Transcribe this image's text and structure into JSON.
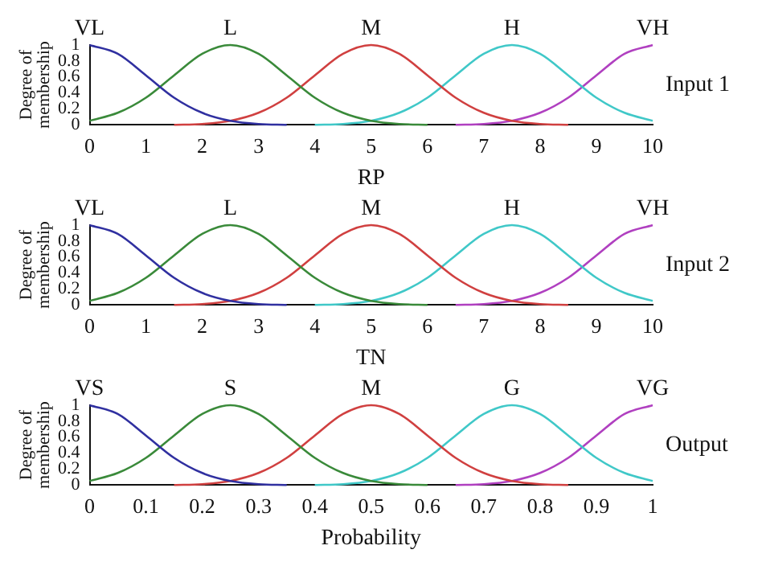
{
  "chart_data": [
    {
      "type": "line",
      "xlabel": "RP",
      "ylabel": "Degree of membership",
      "annotations": [
        "Input 1"
      ],
      "x": [
        0,
        0.5,
        1,
        1.5,
        2,
        2.5,
        3,
        3.5,
        4,
        4.5,
        5,
        5.5,
        6,
        6.5,
        7,
        7.5,
        8,
        8.5,
        9,
        9.5,
        10
      ],
      "xlim": [
        0,
        10
      ],
      "xticks": [
        0,
        1,
        2,
        3,
        4,
        5,
        6,
        7,
        8,
        9,
        10
      ],
      "ylim": [
        0,
        1
      ],
      "yticks": [
        0,
        0.2,
        0.4,
        0.6,
        0.8,
        1
      ],
      "grid": false,
      "legend": false,
      "marker": "none",
      "line_style": "solid",
      "series": [
        {
          "name": "VL",
          "color": "#3030a0",
          "values": [
            1,
            0.89,
            0.62,
            0.34,
            0.15,
            0.05,
            0.01,
            0,
            null,
            null,
            null,
            null,
            null,
            null,
            null,
            null,
            null,
            null,
            null,
            null,
            null
          ]
        },
        {
          "name": "L",
          "color": "#3a8a3a",
          "values": [
            0.05,
            0.15,
            0.34,
            0.62,
            0.89,
            1,
            0.89,
            0.62,
            0.34,
            0.15,
            0.05,
            0.01,
            0,
            null,
            null,
            null,
            null,
            null,
            null,
            null,
            null
          ]
        },
        {
          "name": "M",
          "color": "#d04040",
          "values": [
            null,
            null,
            null,
            0,
            0.01,
            0.05,
            0.15,
            0.34,
            0.62,
            0.89,
            1,
            0.89,
            0.62,
            0.34,
            0.15,
            0.05,
            0.01,
            0,
            null,
            null,
            null
          ]
        },
        {
          "name": "H",
          "color": "#40c8c8",
          "values": [
            null,
            null,
            null,
            null,
            null,
            null,
            null,
            null,
            0,
            0.01,
            0.05,
            0.15,
            0.34,
            0.62,
            0.89,
            1,
            0.89,
            0.62,
            0.34,
            0.15,
            0.05
          ]
        },
        {
          "name": "VH",
          "color": "#b040c0",
          "values": [
            null,
            null,
            null,
            null,
            null,
            null,
            null,
            null,
            null,
            null,
            null,
            null,
            null,
            0,
            0.01,
            0.05,
            0.15,
            0.34,
            0.62,
            0.89,
            1
          ]
        }
      ]
    },
    {
      "type": "line",
      "xlabel": "TN",
      "ylabel": "Degree of membership",
      "annotations": [
        "Input 2"
      ],
      "x": [
        0,
        0.5,
        1,
        1.5,
        2,
        2.5,
        3,
        3.5,
        4,
        4.5,
        5,
        5.5,
        6,
        6.5,
        7,
        7.5,
        8,
        8.5,
        9,
        9.5,
        10
      ],
      "xlim": [
        0,
        10
      ],
      "xticks": [
        0,
        1,
        2,
        3,
        4,
        5,
        6,
        7,
        8,
        9,
        10
      ],
      "ylim": [
        0,
        1
      ],
      "yticks": [
        0,
        0.2,
        0.4,
        0.6,
        0.8,
        1
      ],
      "grid": false,
      "legend": false,
      "marker": "none",
      "line_style": "solid",
      "series": [
        {
          "name": "VL",
          "color": "#3030a0",
          "values": [
            1,
            0.89,
            0.62,
            0.34,
            0.15,
            0.05,
            0.01,
            0,
            null,
            null,
            null,
            null,
            null,
            null,
            null,
            null,
            null,
            null,
            null,
            null,
            null
          ]
        },
        {
          "name": "L",
          "color": "#3a8a3a",
          "values": [
            0.05,
            0.15,
            0.34,
            0.62,
            0.89,
            1,
            0.89,
            0.62,
            0.34,
            0.15,
            0.05,
            0.01,
            0,
            null,
            null,
            null,
            null,
            null,
            null,
            null,
            null
          ]
        },
        {
          "name": "M",
          "color": "#d04040",
          "values": [
            null,
            null,
            null,
            0,
            0.01,
            0.05,
            0.15,
            0.34,
            0.62,
            0.89,
            1,
            0.89,
            0.62,
            0.34,
            0.15,
            0.05,
            0.01,
            0,
            null,
            null,
            null
          ]
        },
        {
          "name": "H",
          "color": "#40c8c8",
          "values": [
            null,
            null,
            null,
            null,
            null,
            null,
            null,
            null,
            0,
            0.01,
            0.05,
            0.15,
            0.34,
            0.62,
            0.89,
            1,
            0.89,
            0.62,
            0.34,
            0.15,
            0.05
          ]
        },
        {
          "name": "VH",
          "color": "#b040c0",
          "values": [
            null,
            null,
            null,
            null,
            null,
            null,
            null,
            null,
            null,
            null,
            null,
            null,
            null,
            0,
            0.01,
            0.05,
            0.15,
            0.34,
            0.62,
            0.89,
            1
          ]
        }
      ]
    },
    {
      "type": "line",
      "xlabel": "Probability",
      "ylabel": "Degree of membership",
      "annotations": [
        "Output"
      ],
      "x": [
        0,
        0.05,
        0.1,
        0.15,
        0.2,
        0.25,
        0.3,
        0.35,
        0.4,
        0.45,
        0.5,
        0.55,
        0.6,
        0.65,
        0.7,
        0.75,
        0.8,
        0.85,
        0.9,
        0.95,
        1
      ],
      "xlim": [
        0,
        1
      ],
      "xticks": [
        0,
        0.1,
        0.2,
        0.3,
        0.4,
        0.5,
        0.6,
        0.7,
        0.8,
        0.9,
        1
      ],
      "ylim": [
        0,
        1
      ],
      "yticks": [
        0,
        0.2,
        0.4,
        0.6,
        0.8,
        1
      ],
      "grid": false,
      "legend": false,
      "marker": "none",
      "line_style": "solid",
      "series": [
        {
          "name": "VS",
          "color": "#3030a0",
          "values": [
            1,
            0.89,
            0.62,
            0.34,
            0.15,
            0.05,
            0.01,
            0,
            null,
            null,
            null,
            null,
            null,
            null,
            null,
            null,
            null,
            null,
            null,
            null,
            null
          ]
        },
        {
          "name": "S",
          "color": "#3a8a3a",
          "values": [
            0.05,
            0.15,
            0.34,
            0.62,
            0.89,
            1,
            0.89,
            0.62,
            0.34,
            0.15,
            0.05,
            0.01,
            0,
            null,
            null,
            null,
            null,
            null,
            null,
            null,
            null
          ]
        },
        {
          "name": "M",
          "color": "#d04040",
          "values": [
            null,
            null,
            null,
            0,
            0.01,
            0.05,
            0.15,
            0.34,
            0.62,
            0.89,
            1,
            0.89,
            0.62,
            0.34,
            0.15,
            0.05,
            0.01,
            0,
            null,
            null,
            null
          ]
        },
        {
          "name": "G",
          "color": "#40c8c8",
          "values": [
            null,
            null,
            null,
            null,
            null,
            null,
            null,
            null,
            0,
            0.01,
            0.05,
            0.15,
            0.34,
            0.62,
            0.89,
            1,
            0.89,
            0.62,
            0.34,
            0.15,
            0.05
          ]
        },
        {
          "name": "VG",
          "color": "#b040c0",
          "values": [
            null,
            null,
            null,
            null,
            null,
            null,
            null,
            null,
            null,
            null,
            null,
            null,
            null,
            0,
            0.01,
            0.05,
            0.15,
            0.34,
            0.62,
            0.89,
            1
          ]
        }
      ]
    }
  ]
}
